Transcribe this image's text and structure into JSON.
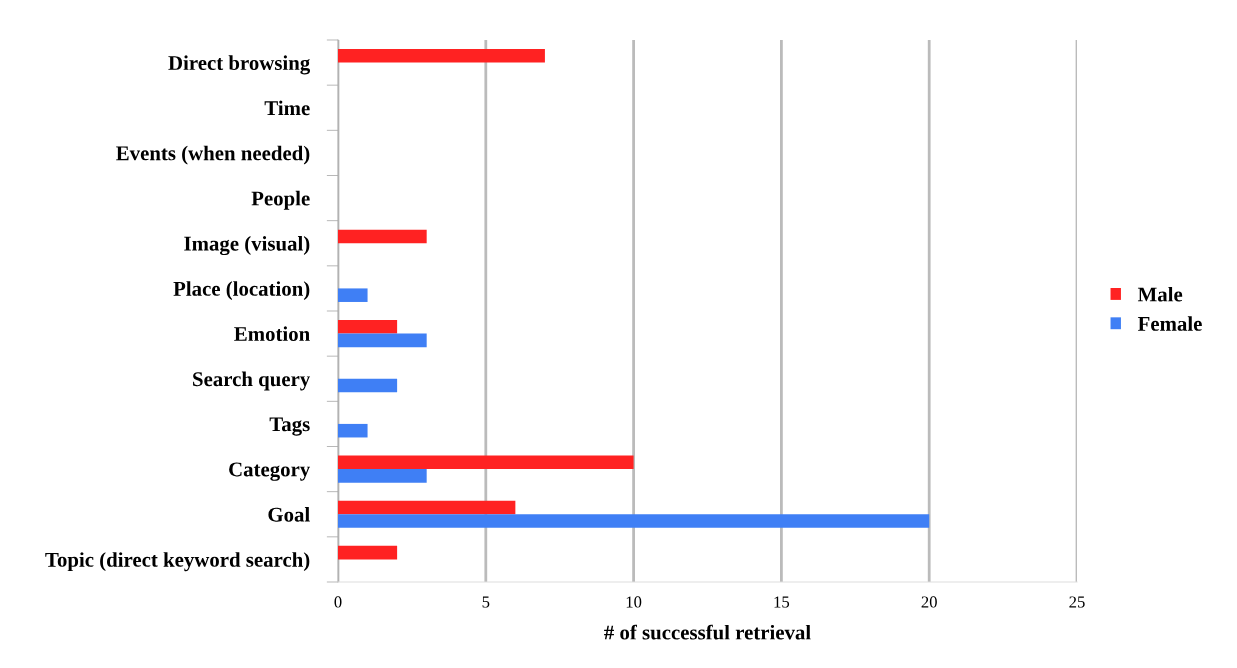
{
  "chart_data": {
    "type": "bar",
    "orientation": "horizontal",
    "xlabel": "# of successful retrieval",
    "categories": [
      "Direct browsing",
      "Time",
      "Events (when needed)",
      "People",
      "Image (visual)",
      "Place (location)",
      "Emotion",
      "Search query",
      "Tags",
      "Category",
      "Goal",
      "Topic (direct keyword search)"
    ],
    "series": [
      {
        "name": "Male",
        "color": "#ff2222",
        "values": [
          7,
          0,
          0,
          0,
          3,
          0,
          2,
          0,
          0,
          10,
          6,
          2
        ]
      },
      {
        "name": "Female",
        "color": "#3f7ff5",
        "values": [
          0,
          0,
          0,
          0,
          0,
          1,
          3,
          2,
          1,
          3,
          20,
          0
        ]
      }
    ],
    "xlim": [
      0,
      25
    ],
    "xticks": [
      0,
      5,
      10,
      15,
      20,
      25
    ],
    "grid": "x",
    "legend": "right"
  }
}
